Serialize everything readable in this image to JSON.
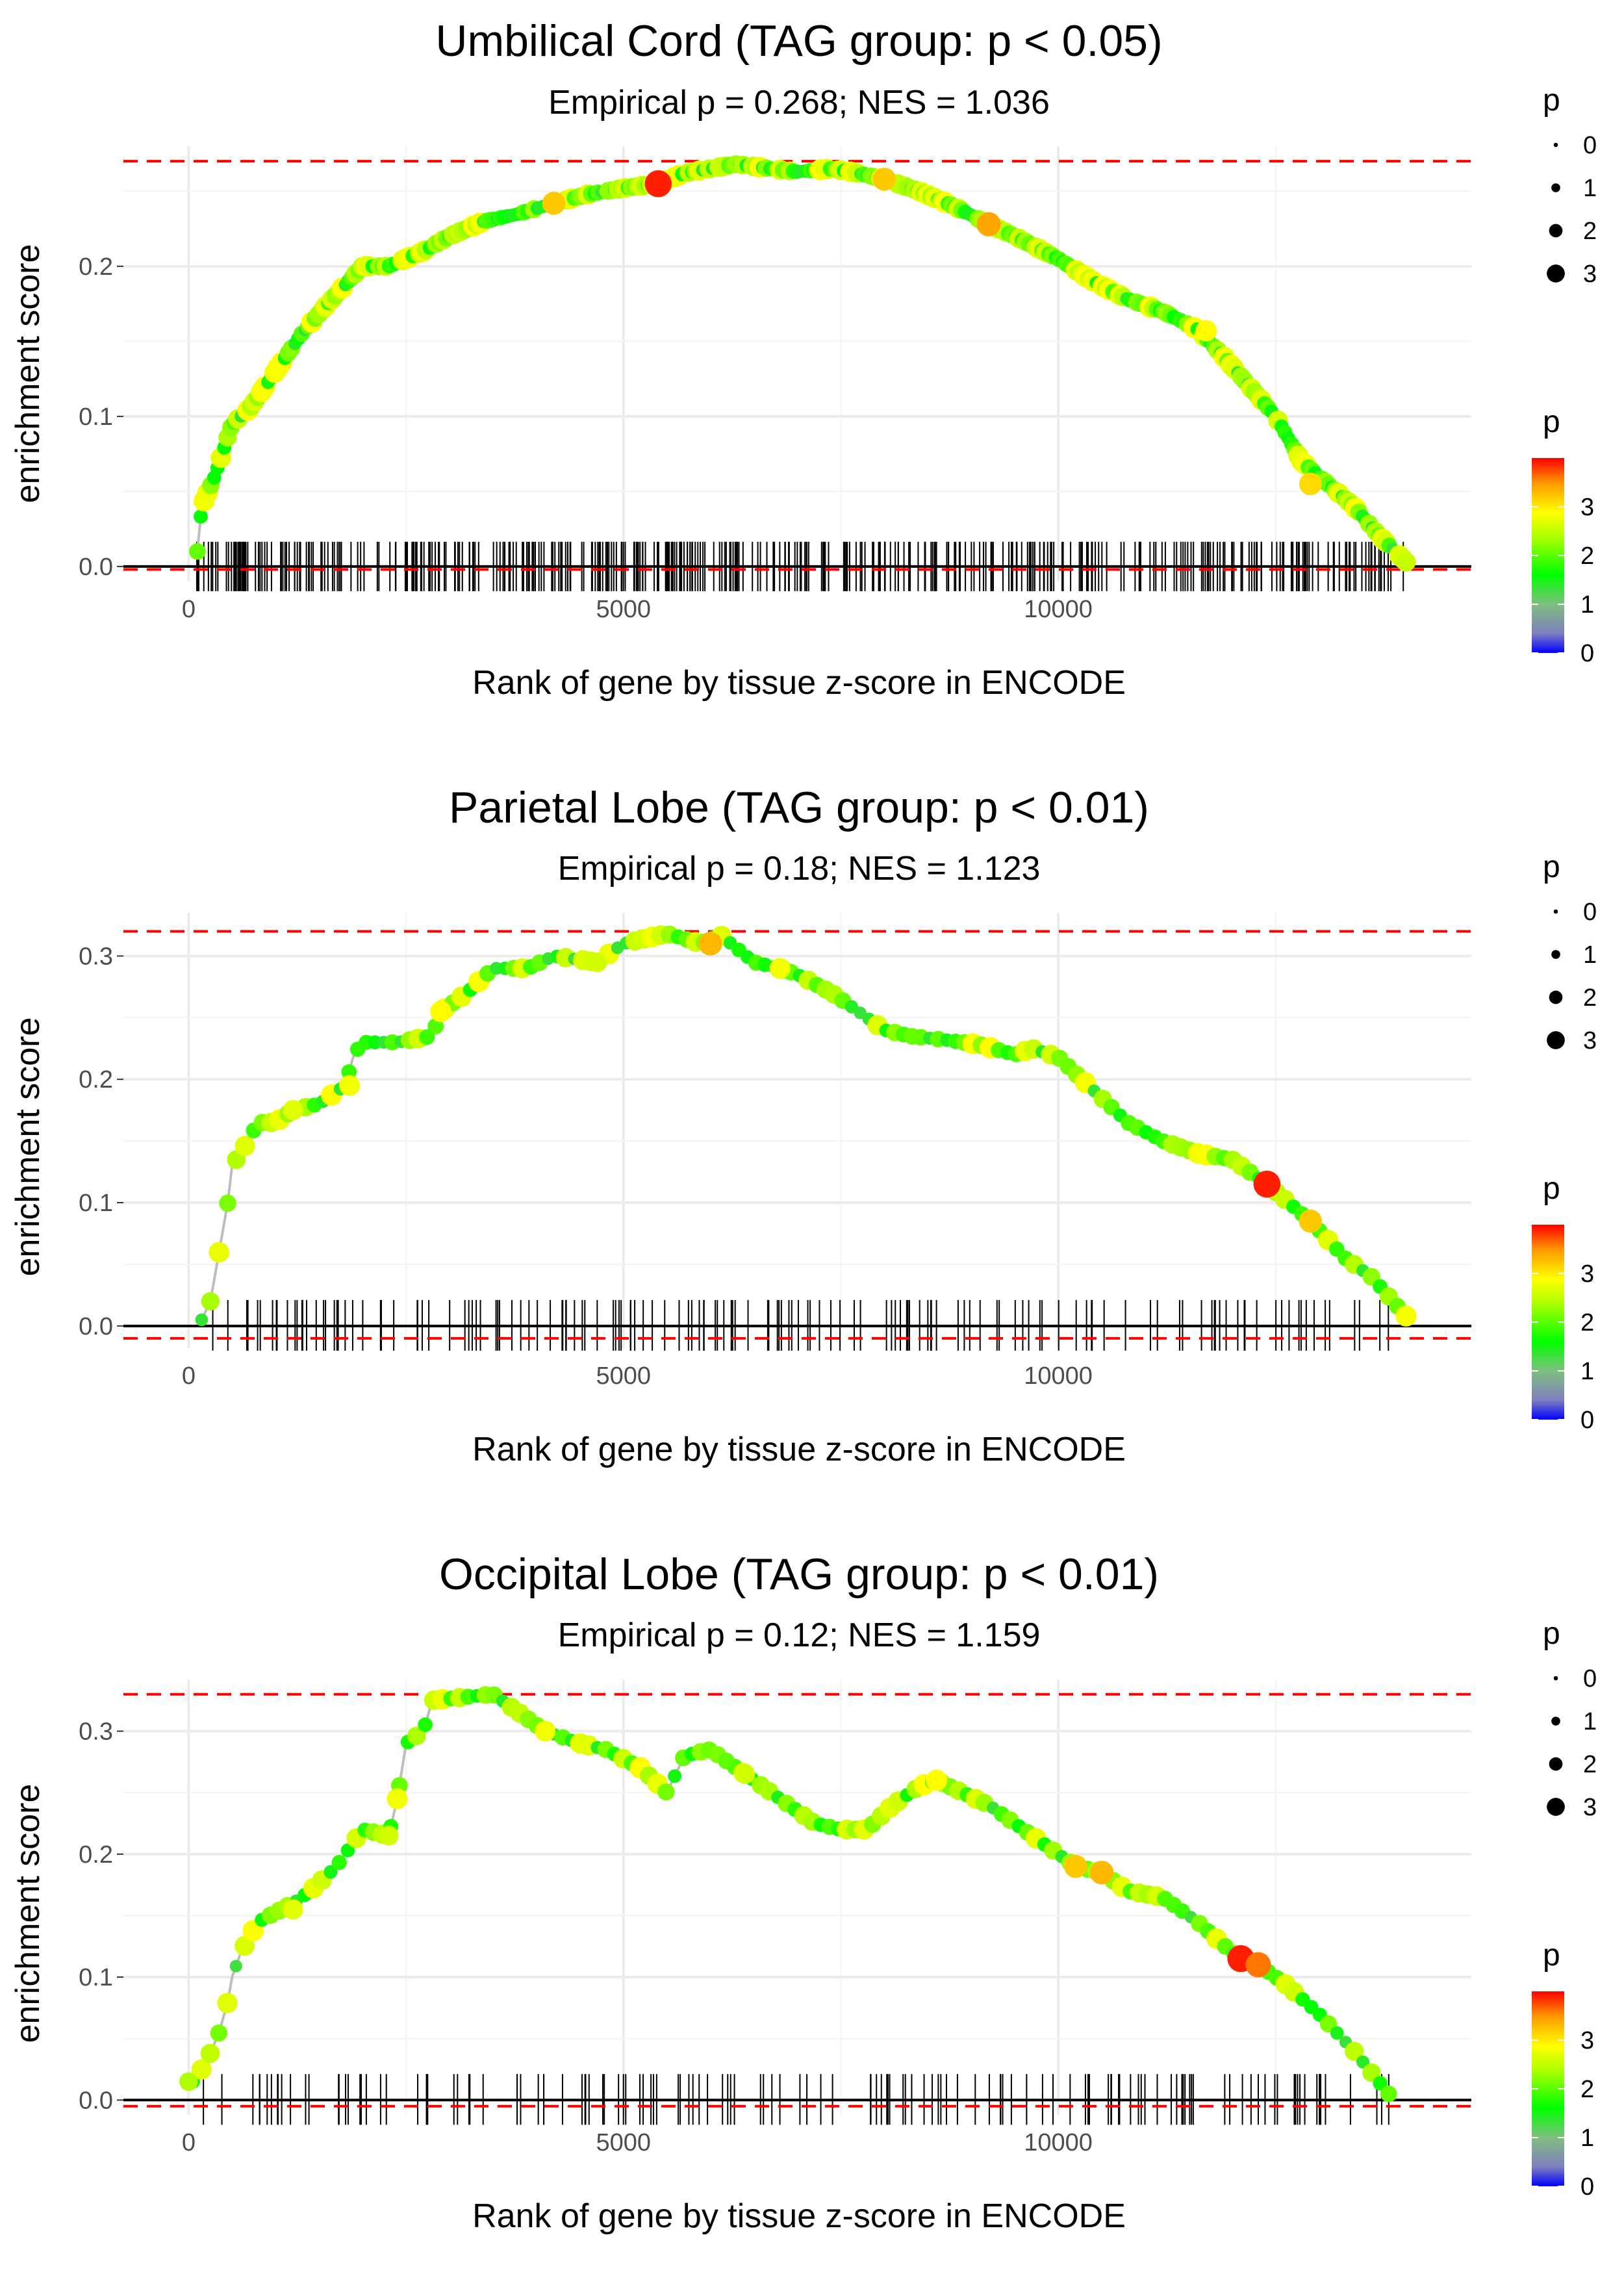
{
  "chart_data": [
    {
      "type": "scatter",
      "title": "Umbilical Cord (TAG group: p < 0.05)",
      "subtitle": "Empirical p = 0.268; NES = 1.036",
      "xlabel": "Rank of gene by tissue z-score in ENCODE",
      "ylabel": "enrichment score",
      "xlim": [
        -750,
        14750
      ],
      "ylim": [
        -0.01,
        0.28
      ],
      "xticks": [
        0,
        5000,
        10000
      ],
      "xtick_labels": [
        "0",
        "5000",
        "10000"
      ],
      "yticks": [
        0.0,
        0.1,
        0.2
      ],
      "ytick_labels": [
        "0.0",
        "0.1",
        "0.2"
      ],
      "max_line": 0.27,
      "min_line": -0.002,
      "n_ticks": 420,
      "tick_range": [
        80,
        14000
      ],
      "points": [
        [
          100,
          0.01
        ],
        [
          150,
          0.04
        ],
        [
          300,
          0.06
        ],
        [
          500,
          0.095
        ],
        [
          700,
          0.105
        ],
        [
          1000,
          0.13
        ],
        [
          1300,
          0.155
        ],
        [
          1600,
          0.175
        ],
        [
          2000,
          0.2
        ],
        [
          2300,
          0.2
        ],
        [
          2700,
          0.21
        ],
        [
          3000,
          0.22
        ],
        [
          3400,
          0.23
        ],
        [
          3800,
          0.235
        ],
        [
          4200,
          0.242
        ],
        [
          4600,
          0.248
        ],
        [
          5000,
          0.252
        ],
        [
          5400,
          0.255
        ],
        [
          5700,
          0.262
        ],
        [
          6000,
          0.265
        ],
        [
          6300,
          0.268
        ],
        [
          6700,
          0.265
        ],
        [
          7000,
          0.263
        ],
        [
          7400,
          0.265
        ],
        [
          7700,
          0.262
        ],
        [
          8000,
          0.258
        ],
        [
          8400,
          0.25
        ],
        [
          8800,
          0.24
        ],
        [
          9200,
          0.228
        ],
        [
          9500,
          0.22
        ],
        [
          10000,
          0.205
        ],
        [
          10400,
          0.19
        ],
        [
          10800,
          0.178
        ],
        [
          11200,
          0.17
        ],
        [
          11600,
          0.158
        ],
        [
          11900,
          0.14
        ],
        [
          12200,
          0.12
        ],
        [
          12500,
          0.1
        ],
        [
          12800,
          0.07
        ],
        [
          13100,
          0.055
        ],
        [
          13400,
          0.04
        ],
        [
          13700,
          0.02
        ],
        [
          14000,
          0.003
        ]
      ],
      "highlights": [
        [
          4200,
          0.242,
          3.2,
          3.2
        ],
        [
          5400,
          0.255,
          3.9,
          3.9
        ],
        [
          8000,
          0.258,
          3.2,
          3.2
        ],
        [
          9200,
          0.228,
          3.4,
          3.4
        ],
        [
          11700,
          0.157,
          2.9,
          2.9
        ],
        [
          12900,
          0.055,
          3.1,
          3.1
        ]
      ],
      "size_legend": {
        "title": "p",
        "values": [
          0,
          1,
          2,
          3
        ]
      },
      "color_legend": {
        "title": "p",
        "ticks": [
          0,
          1,
          2,
          3
        ],
        "max": 4
      }
    },
    {
      "type": "scatter",
      "title": "Parietal Lobe (TAG group: p < 0.01)",
      "subtitle": "Empirical p = 0.18; NES = 1.123",
      "xlabel": "Rank of gene by tissue z-score in ENCODE",
      "ylabel": "enrichment score",
      "xlim": [
        -750,
        14750
      ],
      "ylim": [
        -0.018,
        0.335
      ],
      "xticks": [
        0,
        5000,
        10000
      ],
      "xtick_labels": [
        "0",
        "5000",
        "10000"
      ],
      "yticks": [
        0.0,
        0.1,
        0.2,
        0.3
      ],
      "ytick_labels": [
        "0.0",
        "0.1",
        "0.2",
        "0.3"
      ],
      "max_line": 0.32,
      "min_line": -0.01,
      "n_ticks": 150,
      "tick_range": [
        150,
        13800
      ],
      "points": [
        [
          150,
          0.005
        ],
        [
          250,
          0.02
        ],
        [
          350,
          0.06
        ],
        [
          450,
          0.1
        ],
        [
          500,
          0.13
        ],
        [
          600,
          0.14
        ],
        [
          800,
          0.165
        ],
        [
          1000,
          0.165
        ],
        [
          1200,
          0.175
        ],
        [
          1500,
          0.18
        ],
        [
          1800,
          0.195
        ],
        [
          1900,
          0.22
        ],
        [
          2000,
          0.23
        ],
        [
          2400,
          0.23
        ],
        [
          2800,
          0.235
        ],
        [
          2900,
          0.255
        ],
        [
          3200,
          0.27
        ],
        [
          3500,
          0.29
        ],
        [
          3900,
          0.29
        ],
        [
          4200,
          0.3
        ],
        [
          4700,
          0.295
        ],
        [
          5000,
          0.31
        ],
        [
          5300,
          0.315
        ],
        [
          5500,
          0.318
        ],
        [
          5900,
          0.31
        ],
        [
          6100,
          0.318
        ],
        [
          6500,
          0.295
        ],
        [
          6800,
          0.29
        ],
        [
          7000,
          0.285
        ],
        [
          7400,
          0.27
        ],
        [
          8000,
          0.24
        ],
        [
          8300,
          0.235
        ],
        [
          8700,
          0.232
        ],
        [
          9100,
          0.228
        ],
        [
          9500,
          0.22
        ],
        [
          9700,
          0.225
        ],
        [
          10000,
          0.218
        ],
        [
          10800,
          0.165
        ],
        [
          11200,
          0.15
        ],
        [
          11600,
          0.14
        ],
        [
          12000,
          0.135
        ],
        [
          12400,
          0.115
        ],
        [
          12900,
          0.085
        ],
        [
          13300,
          0.055
        ],
        [
          13600,
          0.04
        ],
        [
          14000,
          0.008
        ]
      ],
      "highlights": [
        [
          1200,
          0.175,
          2.7,
          2.7
        ],
        [
          1850,
          0.195,
          2.8,
          2.8
        ],
        [
          2900,
          0.255,
          2.9,
          2.9
        ],
        [
          4700,
          0.295,
          2.6,
          2.6
        ],
        [
          6000,
          0.31,
          3.3,
          3.3
        ],
        [
          6800,
          0.29,
          2.8,
          2.8
        ],
        [
          12400,
          0.115,
          3.9,
          3.9
        ],
        [
          12900,
          0.085,
          3.2,
          3.2
        ]
      ],
      "size_legend": {
        "title": "p",
        "values": [
          0,
          1,
          2,
          3
        ]
      },
      "color_legend": {
        "title": "p",
        "ticks": [
          0,
          1,
          2,
          3
        ],
        "max": 4
      }
    },
    {
      "type": "scatter",
      "title": "Occipital Lobe (TAG group: p < 0.01)",
      "subtitle": "Empirical p = 0.12; NES = 1.159",
      "xlabel": "Rank of gene by tissue z-score in ENCODE",
      "ylabel": "enrichment score",
      "xlim": [
        -750,
        14750
      ],
      "ylim": [
        -0.012,
        0.342
      ],
      "xticks": [
        0,
        5000,
        10000
      ],
      "xtick_labels": [
        "0",
        "5000",
        "10000"
      ],
      "yticks": [
        0.0,
        0.1,
        0.2,
        0.3
      ],
      "ytick_labels": [
        "0.0",
        "0.1",
        "0.2",
        "0.3"
      ],
      "max_line": 0.33,
      "min_line": -0.005,
      "n_ticks": 140,
      "tick_range": [
        80,
        13800
      ],
      "points": [
        [
          50,
          0.015
        ],
        [
          200,
          0.03
        ],
        [
          350,
          0.055
        ],
        [
          450,
          0.08
        ],
        [
          500,
          0.1
        ],
        [
          600,
          0.12
        ],
        [
          800,
          0.145
        ],
        [
          1200,
          0.16
        ],
        [
          1400,
          0.17
        ],
        [
          1700,
          0.19
        ],
        [
          2000,
          0.22
        ],
        [
          2300,
          0.215
        ],
        [
          2400,
          0.245
        ],
        [
          2500,
          0.29
        ],
        [
          2700,
          0.3
        ],
        [
          2800,
          0.325
        ],
        [
          3500,
          0.33
        ],
        [
          4100,
          0.3
        ],
        [
          4500,
          0.29
        ],
        [
          4800,
          0.285
        ],
        [
          5200,
          0.27
        ],
        [
          5500,
          0.25
        ],
        [
          5700,
          0.28
        ],
        [
          6000,
          0.285
        ],
        [
          6400,
          0.265
        ],
        [
          7200,
          0.225
        ],
        [
          7500,
          0.22
        ],
        [
          7800,
          0.22
        ],
        [
          8100,
          0.24
        ],
        [
          8400,
          0.255
        ],
        [
          8600,
          0.26
        ],
        [
          9200,
          0.24
        ],
        [
          9800,
          0.21
        ],
        [
          10200,
          0.19
        ],
        [
          10500,
          0.185
        ],
        [
          10800,
          0.17
        ],
        [
          11200,
          0.165
        ],
        [
          11600,
          0.145
        ],
        [
          12000,
          0.12
        ],
        [
          12300,
          0.11
        ],
        [
          12600,
          0.095
        ],
        [
          13000,
          0.07
        ],
        [
          13400,
          0.04
        ],
        [
          13800,
          0.005
        ]
      ],
      "highlights": [
        [
          0,
          0.015,
          2.4,
          2.4
        ],
        [
          1200,
          0.155,
          2.7,
          2.7
        ],
        [
          2300,
          0.215,
          2.6,
          2.6
        ],
        [
          2400,
          0.245,
          2.8,
          2.8
        ],
        [
          4100,
          0.3,
          2.8,
          2.8
        ],
        [
          6400,
          0.265,
          2.6,
          2.6
        ],
        [
          8600,
          0.26,
          2.9,
          2.9
        ],
        [
          10200,
          0.19,
          3.2,
          3.2
        ],
        [
          10500,
          0.185,
          3.3,
          3.3
        ],
        [
          12100,
          0.115,
          3.9,
          3.9
        ],
        [
          12300,
          0.11,
          3.6,
          3.6
        ]
      ],
      "size_legend": {
        "title": "p",
        "values": [
          0,
          1,
          2,
          3
        ]
      },
      "color_legend": {
        "title": "p",
        "ticks": [
          0,
          1,
          2,
          3
        ],
        "max": 4
      }
    }
  ]
}
